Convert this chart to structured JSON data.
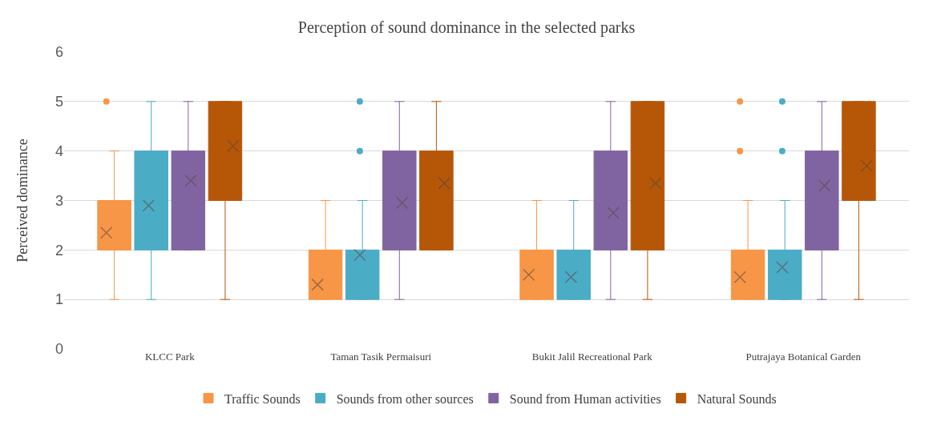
{
  "chart_data": {
    "type": "box",
    "title": "Perception of sound dominance in the selected parks",
    "ylabel": "Perceived dominance",
    "categories": [
      "KLCC Park",
      "Taman Tasik Permaisuri",
      "Bukit Jalil Recreational Park",
      "Putrajaya Botanical Garden"
    ],
    "ylim": [
      0,
      6
    ],
    "yticks": [
      0,
      1,
      2,
      3,
      4,
      5,
      6
    ],
    "grid": "y",
    "legend": "bottom",
    "marker": "cross",
    "series": [
      {
        "name": "Traffic Sounds",
        "color": "#f79646",
        "boxes": [
          {
            "low": 1,
            "q1": 2,
            "median": 2,
            "q3": 3,
            "high": 4,
            "mean": 2.35,
            "outliers": [
              5
            ]
          },
          {
            "low": 1,
            "q1": 1,
            "median": 1,
            "q3": 2,
            "high": 3,
            "mean": 1.3
          },
          {
            "low": 1,
            "q1": 1,
            "median": 1,
            "q3": 2,
            "high": 3,
            "mean": 1.5
          },
          {
            "low": 1,
            "q1": 1,
            "median": 1,
            "q3": 2,
            "high": 3,
            "mean": 1.45,
            "outliers": [
              4,
              5
            ]
          }
        ]
      },
      {
        "name": "Sounds from other sources",
        "color": "#4bacc6",
        "boxes": [
          {
            "low": 1,
            "q1": 2,
            "median": 3,
            "q3": 4,
            "high": 5,
            "mean": 2.9
          },
          {
            "low": 1,
            "q1": 1,
            "median": 2,
            "q3": 2,
            "high": 3,
            "mean": 1.9,
            "outliers": [
              4,
              5
            ]
          },
          {
            "low": 1,
            "q1": 1,
            "median": 1,
            "q3": 2,
            "high": 3,
            "mean": 1.45
          },
          {
            "low": 1,
            "q1": 1,
            "median": 2,
            "q3": 2,
            "high": 3,
            "mean": 1.65,
            "outliers": [
              4,
              5
            ]
          }
        ]
      },
      {
        "name": "Sound from Human activities",
        "color": "#8064a2",
        "boxes": [
          {
            "low": 2,
            "q1": 2,
            "median": 3,
            "q3": 4,
            "high": 5,
            "mean": 3.4
          },
          {
            "low": 1,
            "q1": 2,
            "median": 3,
            "q3": 4,
            "high": 5,
            "mean": 2.95
          },
          {
            "low": 1,
            "q1": 2,
            "median": 2,
            "q3": 4,
            "high": 5,
            "mean": 2.75
          },
          {
            "low": 1,
            "q1": 2,
            "median": 3,
            "q3": 4,
            "high": 5,
            "mean": 3.3
          }
        ]
      },
      {
        "name": "Natural Sounds",
        "color": "#b65708",
        "boxes": [
          {
            "low": 1,
            "q1": 3,
            "median": 5,
            "q3": 5,
            "high": 5,
            "mean": 4.1
          },
          {
            "low": 2,
            "q1": 2,
            "median": 3,
            "q3": 4,
            "high": 5,
            "mean": 3.35
          },
          {
            "low": 1,
            "q1": 2,
            "median": 3,
            "q3": 5,
            "high": 5,
            "mean": 3.35
          },
          {
            "low": 1,
            "q1": 3,
            "median": 4,
            "q3": 5,
            "high": 5,
            "mean": 3.7
          }
        ]
      }
    ]
  }
}
